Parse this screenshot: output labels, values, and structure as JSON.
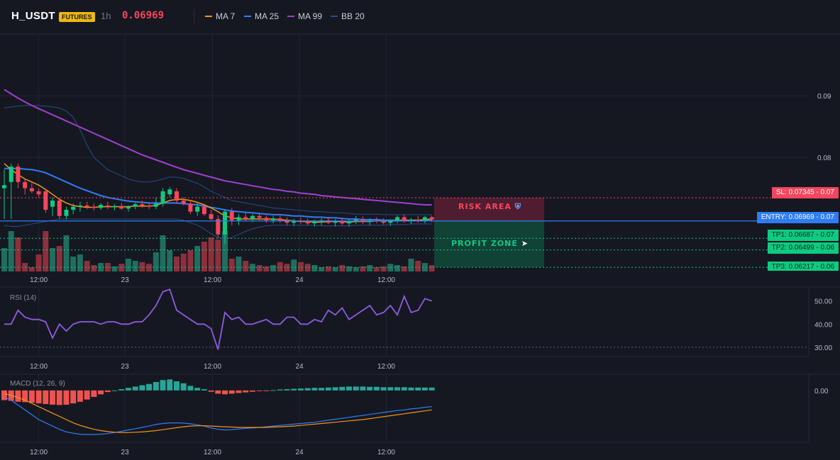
{
  "header": {
    "symbol": "H_USDT",
    "badge": "FUTURES",
    "timeframe": "1h",
    "price": "0.06969",
    "legend": [
      {
        "label": "MA 7",
        "color": "#f7931a"
      },
      {
        "label": "MA 25",
        "color": "#2f7cf6"
      },
      {
        "label": "MA 99",
        "color": "#a23fd1"
      },
      {
        "label": "BB 20",
        "color": "#2a4a8a"
      }
    ]
  },
  "colors": {
    "background": "#151821",
    "up": "#0ecb81",
    "down": "#f6465d",
    "vol_up": "#1f6e5e",
    "vol_down": "#8e2f3c",
    "grid": "#222632"
  },
  "levels": {
    "sl": {
      "label": "SL: 0.07345",
      "axis": "0.07",
      "value": 0.07345,
      "color": "#f6465d"
    },
    "entry": {
      "label": "ENTRY: 0.06969",
      "axis": "0.07",
      "value": 0.06969,
      "color": "#2f7cf6"
    },
    "tp1": {
      "label": "TP1: 0.06687",
      "axis": "0.07",
      "value": 0.06687,
      "color": "#0ecb81"
    },
    "tp2": {
      "label": "TP2: 0.06499",
      "axis": "0.06",
      "value": 0.06499,
      "color": "#0ecb81"
    },
    "tp3": {
      "label": "TP3: 0.06217",
      "axis": "0.06",
      "value": 0.06217,
      "color": "#0ecb81"
    }
  },
  "zones": {
    "risk": {
      "label": "RISK AREA",
      "icon": "shield-icon"
    },
    "profit": {
      "label": "PROFIT ZONE",
      "icon": "rocket-icon"
    }
  },
  "chart_data": [
    {
      "type": "candlestick",
      "name": "price",
      "y_ticks": [
        "0.09",
        "0.08"
      ],
      "y_tick_values": [
        0.09,
        0.08
      ],
      "x_ticks": [
        "12:00",
        "23",
        "12:00",
        "24",
        "12:00"
      ],
      "ylim": [
        0.0615,
        0.1
      ],
      "candles": [
        {
          "o": 0.075,
          "h": 0.078,
          "l": 0.07,
          "c": 0.0755
        },
        {
          "o": 0.076,
          "h": 0.079,
          "l": 0.07,
          "c": 0.0785
        },
        {
          "o": 0.0785,
          "h": 0.079,
          "l": 0.075,
          "c": 0.076
        },
        {
          "o": 0.076,
          "h": 0.0765,
          "l": 0.074,
          "c": 0.075
        },
        {
          "o": 0.075,
          "h": 0.0758,
          "l": 0.0742,
          "c": 0.0745
        },
        {
          "o": 0.0745,
          "h": 0.075,
          "l": 0.0735,
          "c": 0.074
        },
        {
          "o": 0.0745,
          "h": 0.0748,
          "l": 0.071,
          "c": 0.0715
        },
        {
          "o": 0.072,
          "h": 0.0735,
          "l": 0.0705,
          "c": 0.073
        },
        {
          "o": 0.073,
          "h": 0.0735,
          "l": 0.07,
          "c": 0.0705
        },
        {
          "o": 0.0705,
          "h": 0.072,
          "l": 0.07,
          "c": 0.0715
        },
        {
          "o": 0.0715,
          "h": 0.0725,
          "l": 0.0708,
          "c": 0.072
        },
        {
          "o": 0.072,
          "h": 0.0728,
          "l": 0.0712,
          "c": 0.0722
        },
        {
          "o": 0.0722,
          "h": 0.0728,
          "l": 0.0716,
          "c": 0.072
        },
        {
          "o": 0.072,
          "h": 0.0725,
          "l": 0.0714,
          "c": 0.0718
        },
        {
          "o": 0.0718,
          "h": 0.0726,
          "l": 0.0715,
          "c": 0.0723
        },
        {
          "o": 0.0722,
          "h": 0.0728,
          "l": 0.0716,
          "c": 0.0719
        },
        {
          "o": 0.0719,
          "h": 0.0724,
          "l": 0.0714,
          "c": 0.0721
        },
        {
          "o": 0.0721,
          "h": 0.0726,
          "l": 0.0715,
          "c": 0.0717
        },
        {
          "o": 0.0717,
          "h": 0.0722,
          "l": 0.0712,
          "c": 0.072
        },
        {
          "o": 0.072,
          "h": 0.0726,
          "l": 0.0716,
          "c": 0.0724
        },
        {
          "o": 0.0724,
          "h": 0.073,
          "l": 0.0718,
          "c": 0.0722
        },
        {
          "o": 0.0722,
          "h": 0.0726,
          "l": 0.0716,
          "c": 0.072
        },
        {
          "o": 0.072,
          "h": 0.0735,
          "l": 0.0716,
          "c": 0.0725
        },
        {
          "o": 0.0725,
          "h": 0.075,
          "l": 0.072,
          "c": 0.0745
        },
        {
          "o": 0.074,
          "h": 0.0752,
          "l": 0.0735,
          "c": 0.0748
        },
        {
          "o": 0.0745,
          "h": 0.075,
          "l": 0.0725,
          "c": 0.073
        },
        {
          "o": 0.073,
          "h": 0.0735,
          "l": 0.0722,
          "c": 0.0725
        },
        {
          "o": 0.0725,
          "h": 0.073,
          "l": 0.0708,
          "c": 0.0712
        },
        {
          "o": 0.0712,
          "h": 0.0728,
          "l": 0.0705,
          "c": 0.072
        },
        {
          "o": 0.072,
          "h": 0.0725,
          "l": 0.0705,
          "c": 0.0708
        },
        {
          "o": 0.0708,
          "h": 0.0715,
          "l": 0.0698,
          "c": 0.07
        },
        {
          "o": 0.07,
          "h": 0.0706,
          "l": 0.067,
          "c": 0.0675
        },
        {
          "o": 0.0675,
          "h": 0.0715,
          "l": 0.066,
          "c": 0.0712
        },
        {
          "o": 0.0712,
          "h": 0.0718,
          "l": 0.069,
          "c": 0.0698
        },
        {
          "o": 0.0698,
          "h": 0.0708,
          "l": 0.069,
          "c": 0.0703
        },
        {
          "o": 0.0703,
          "h": 0.071,
          "l": 0.0696,
          "c": 0.07
        },
        {
          "o": 0.07,
          "h": 0.0708,
          "l": 0.0695,
          "c": 0.0705
        },
        {
          "o": 0.0705,
          "h": 0.071,
          "l": 0.0698,
          "c": 0.0702
        },
        {
          "o": 0.0702,
          "h": 0.0706,
          "l": 0.0694,
          "c": 0.0698
        },
        {
          "o": 0.0698,
          "h": 0.0705,
          "l": 0.0693,
          "c": 0.0701
        },
        {
          "o": 0.0701,
          "h": 0.0706,
          "l": 0.0694,
          "c": 0.0697
        },
        {
          "o": 0.0697,
          "h": 0.0703,
          "l": 0.069,
          "c": 0.0694
        },
        {
          "o": 0.0694,
          "h": 0.07,
          "l": 0.0689,
          "c": 0.0697
        },
        {
          "o": 0.0697,
          "h": 0.0702,
          "l": 0.0692,
          "c": 0.0696
        },
        {
          "o": 0.0696,
          "h": 0.0701,
          "l": 0.069,
          "c": 0.0693
        },
        {
          "o": 0.0693,
          "h": 0.0699,
          "l": 0.0688,
          "c": 0.0695
        },
        {
          "o": 0.0695,
          "h": 0.0701,
          "l": 0.069,
          "c": 0.0698
        },
        {
          "o": 0.0698,
          "h": 0.0703,
          "l": 0.0692,
          "c": 0.0694
        },
        {
          "o": 0.0694,
          "h": 0.07,
          "l": 0.0688,
          "c": 0.0697
        },
        {
          "o": 0.0697,
          "h": 0.0702,
          "l": 0.069,
          "c": 0.0693
        },
        {
          "o": 0.0693,
          "h": 0.0699,
          "l": 0.0688,
          "c": 0.0696
        },
        {
          "o": 0.0696,
          "h": 0.0705,
          "l": 0.0692,
          "c": 0.0699
        },
        {
          "o": 0.0699,
          "h": 0.0704,
          "l": 0.0692,
          "c": 0.0695
        },
        {
          "o": 0.0695,
          "h": 0.0701,
          "l": 0.069,
          "c": 0.0698
        },
        {
          "o": 0.0698,
          "h": 0.0703,
          "l": 0.0693,
          "c": 0.0696
        },
        {
          "o": 0.0696,
          "h": 0.0701,
          "l": 0.0691,
          "c": 0.0694
        },
        {
          "o": 0.0694,
          "h": 0.0699,
          "l": 0.0689,
          "c": 0.0697
        },
        {
          "o": 0.0697,
          "h": 0.0706,
          "l": 0.0693,
          "c": 0.0703
        },
        {
          "o": 0.0703,
          "h": 0.0707,
          "l": 0.0694,
          "c": 0.0696
        },
        {
          "o": 0.0696,
          "h": 0.0702,
          "l": 0.0692,
          "c": 0.0699
        },
        {
          "o": 0.0699,
          "h": 0.0705,
          "l": 0.0694,
          "c": 0.0697
        },
        {
          "o": 0.0697,
          "h": 0.0705,
          "l": 0.0693,
          "c": 0.0703
        },
        {
          "o": 0.0703,
          "h": 0.0706,
          "l": 0.0695,
          "c": 0.0699
        }
      ],
      "volume": [
        0.55,
        0.95,
        0.8,
        0.2,
        0.1,
        0.4,
        0.95,
        0.55,
        0.6,
        0.85,
        0.35,
        0.4,
        0.25,
        0.15,
        0.2,
        0.2,
        0.12,
        0.18,
        0.3,
        0.25,
        0.22,
        0.18,
        0.45,
        0.85,
        0.5,
        0.35,
        0.42,
        0.5,
        0.6,
        0.7,
        0.8,
        0.75,
        0.95,
        0.3,
        0.35,
        0.25,
        0.18,
        0.15,
        0.12,
        0.15,
        0.22,
        0.18,
        0.28,
        0.22,
        0.18,
        0.15,
        0.1,
        0.12,
        0.1,
        0.15,
        0.12,
        0.1,
        0.12,
        0.15,
        0.1,
        0.12,
        0.18,
        0.15,
        0.12,
        0.3,
        0.25,
        0.2,
        0.15
      ],
      "ma7": [
        0.079,
        0.078,
        0.0772,
        0.0765,
        0.076,
        0.0755,
        0.0748,
        0.074,
        0.0732,
        0.0726,
        0.0722,
        0.072,
        0.0719,
        0.0719,
        0.072,
        0.072,
        0.072,
        0.072,
        0.072,
        0.0721,
        0.0721,
        0.0721,
        0.0722,
        0.0726,
        0.073,
        0.0732,
        0.0732,
        0.073,
        0.0727,
        0.0723,
        0.0718,
        0.0712,
        0.0705,
        0.0702,
        0.07,
        0.07,
        0.07,
        0.07,
        0.07,
        0.07,
        0.0699,
        0.0698,
        0.0697,
        0.0696,
        0.0696,
        0.0695,
        0.0695,
        0.0696,
        0.0696,
        0.0696,
        0.0695,
        0.0696,
        0.0696,
        0.0696,
        0.0697,
        0.0697,
        0.0697,
        0.0697,
        0.0698,
        0.0698,
        0.0698,
        0.0699,
        0.07
      ],
      "ma25": [
        0.0782,
        0.0782,
        0.0782,
        0.0781,
        0.078,
        0.0778,
        0.0775,
        0.077,
        0.0765,
        0.076,
        0.0755,
        0.075,
        0.0746,
        0.0742,
        0.0738,
        0.0735,
        0.0733,
        0.0731,
        0.0729,
        0.0728,
        0.0727,
        0.0726,
        0.0726,
        0.0726,
        0.0726,
        0.0726,
        0.0725,
        0.0724,
        0.0723,
        0.0721,
        0.0719,
        0.0717,
        0.0715,
        0.0713,
        0.0712,
        0.0711,
        0.071,
        0.0709,
        0.0708,
        0.0707,
        0.0707,
        0.0706,
        0.0705,
        0.0705,
        0.0704,
        0.0703,
        0.0703,
        0.0702,
        0.0702,
        0.0701,
        0.07,
        0.07,
        0.0699,
        0.0699,
        0.0699,
        0.0698,
        0.0698,
        0.0698,
        0.0698,
        0.0698,
        0.0698,
        0.0698,
        0.0698
      ],
      "ma99": [
        0.091,
        0.0903,
        0.0896,
        0.089,
        0.0884,
        0.0879,
        0.0874,
        0.0869,
        0.0864,
        0.0859,
        0.0854,
        0.0849,
        0.0844,
        0.0839,
        0.0834,
        0.0829,
        0.0824,
        0.0819,
        0.0814,
        0.0809,
        0.0804,
        0.08,
        0.0796,
        0.0792,
        0.0788,
        0.0784,
        0.078,
        0.0777,
        0.0774,
        0.0771,
        0.0768,
        0.0765,
        0.0762,
        0.076,
        0.0758,
        0.0756,
        0.0754,
        0.0752,
        0.075,
        0.0748,
        0.0747,
        0.0745,
        0.0744,
        0.0742,
        0.0741,
        0.074,
        0.0738,
        0.0737,
        0.0736,
        0.0735,
        0.0734,
        0.0733,
        0.0732,
        0.0731,
        0.073,
        0.0729,
        0.0728,
        0.0727,
        0.0726,
        0.0725,
        0.0724,
        0.0723,
        0.0723
      ],
      "bb_upper": [
        0.088,
        0.0882,
        0.0883,
        0.0884,
        0.0884,
        0.0884,
        0.0883,
        0.0882,
        0.088,
        0.0875,
        0.0865,
        0.0845,
        0.082,
        0.08,
        0.079,
        0.078,
        0.0775,
        0.077,
        0.0765,
        0.0762,
        0.076,
        0.076,
        0.0762,
        0.0765,
        0.0768,
        0.0768,
        0.0766,
        0.0762,
        0.0758,
        0.0752,
        0.0745,
        0.074,
        0.0735,
        0.073,
        0.0728,
        0.0726,
        0.0724,
        0.0722,
        0.072,
        0.0718,
        0.0717,
        0.0716,
        0.0715,
        0.0714,
        0.0713,
        0.0712,
        0.0712,
        0.0711,
        0.071,
        0.071,
        0.0709,
        0.0708,
        0.0708,
        0.0708,
        0.0708,
        0.0707,
        0.0707,
        0.0707,
        0.0707,
        0.0707,
        0.0707,
        0.0707,
        0.0707
      ],
      "bb_lower": [
        0.069,
        0.0688,
        0.0688,
        0.069,
        0.0692,
        0.0694,
        0.0696,
        0.0698,
        0.07,
        0.07,
        0.07,
        0.07,
        0.07,
        0.07,
        0.07,
        0.07,
        0.07,
        0.07,
        0.07,
        0.07,
        0.07,
        0.07,
        0.07,
        0.07,
        0.07,
        0.07,
        0.0698,
        0.0694,
        0.069,
        0.0684,
        0.0676,
        0.067,
        0.0668,
        0.067,
        0.0675,
        0.068,
        0.0684,
        0.0687,
        0.0689,
        0.069,
        0.069,
        0.069,
        0.069,
        0.069,
        0.069,
        0.069,
        0.0689,
        0.0689,
        0.0689,
        0.0689,
        0.0689,
        0.069,
        0.069,
        0.069,
        0.069,
        0.069,
        0.0691,
        0.0691,
        0.0691,
        0.0692,
        0.0692,
        0.0692,
        0.0692
      ]
    },
    {
      "type": "line",
      "name": "RSI (14)",
      "title": "RSI (14)",
      "y_ticks": [
        "50.00",
        "40.00",
        "30.00"
      ],
      "y_tick_values": [
        50,
        40,
        30
      ],
      "ylim": [
        26,
        56
      ],
      "reference_line": 30,
      "x_ticks": [
        "12:00",
        "23",
        "12:00",
        "24",
        "12:00"
      ],
      "values": [
        40,
        40,
        46,
        43,
        42,
        42,
        41,
        34,
        40,
        37,
        40,
        41,
        41,
        41,
        40,
        41,
        41,
        40,
        40,
        41,
        41,
        44,
        48,
        54,
        55,
        46,
        44,
        42,
        40,
        40,
        38,
        29,
        45,
        42,
        43,
        40,
        40,
        41,
        42,
        40,
        40,
        43,
        43,
        40,
        40,
        42,
        41,
        46,
        44,
        47,
        42,
        44,
        46,
        48,
        44,
        45,
        48,
        44,
        52,
        45,
        46,
        51,
        50
      ]
    },
    {
      "type": "bar+line",
      "name": "MACD (12, 26, 9)",
      "title": "MACD (12, 26, 9)",
      "y_ticks": [
        "0.00"
      ],
      "y_tick_values": [
        0
      ],
      "ylim": [
        -0.0016,
        0.0005
      ],
      "x_ticks": [
        "12:00",
        "23",
        "12:00",
        "24",
        "12:00"
      ],
      "histogram": [
        -0.0003,
        -0.00032,
        -0.00035,
        -0.00036,
        -0.00038,
        -0.0004,
        -0.00042,
        -0.00044,
        -0.00045,
        -0.00044,
        -0.0004,
        -0.00035,
        -0.00028,
        -0.0002,
        -0.00012,
        -5e-05,
        0.0,
        4e-05,
        8e-05,
        0.00012,
        0.00016,
        0.0002,
        0.00026,
        0.00032,
        0.00034,
        0.00028,
        0.00022,
        0.00014,
        8e-05,
        4e-05,
        -4e-05,
        -0.0001,
        -0.00012,
        -0.0001,
        -8e-05,
        -6e-05,
        -4e-05,
        -2e-05,
        -1e-05,
        1e-05,
        3e-05,
        4e-05,
        5e-05,
        6e-05,
        7e-05,
        8e-05,
        8e-05,
        9e-05,
        0.0001,
        0.00011,
        0.00012,
        0.00012,
        0.00012,
        0.00011,
        0.00011,
        0.0001,
        0.0001,
        0.0001,
        0.0001,
        9e-05,
        9e-05,
        9e-05,
        9e-05
      ],
      "macd": [
        -0.0002,
        -0.0003,
        -0.00045,
        -0.0006,
        -0.00075,
        -0.0009,
        -0.001,
        -0.0011,
        -0.0012,
        -0.00128,
        -0.00132,
        -0.00135,
        -0.00136,
        -0.00136,
        -0.00135,
        -0.00133,
        -0.0013,
        -0.00126,
        -0.00122,
        -0.00118,
        -0.00114,
        -0.0011,
        -0.00105,
        -0.00102,
        -0.001,
        -0.001,
        -0.00101,
        -0.00103,
        -0.00106,
        -0.0011,
        -0.00116,
        -0.0012,
        -0.00122,
        -0.00121,
        -0.00119,
        -0.00117,
        -0.00116,
        -0.00114,
        -0.00112,
        -0.0011,
        -0.00108,
        -0.00106,
        -0.00104,
        -0.00102,
        -0.001,
        -0.00098,
        -0.00095,
        -0.00092,
        -0.00089,
        -0.00086,
        -0.00083,
        -0.0008,
        -0.00077,
        -0.00074,
        -0.00071,
        -0.00068,
        -0.00065,
        -0.00062,
        -0.0006,
        -0.00057,
        -0.00055,
        -0.00052,
        -0.0005
      ],
      "signal": [
        -0.0001,
        -0.00015,
        -0.00022,
        -0.0003,
        -0.0004,
        -0.0005,
        -0.0006,
        -0.0007,
        -0.0008,
        -0.0009,
        -0.001,
        -0.00108,
        -0.00114,
        -0.0012,
        -0.00124,
        -0.00127,
        -0.00129,
        -0.0013,
        -0.0013,
        -0.00129,
        -0.00128,
        -0.00126,
        -0.00124,
        -0.00121,
        -0.00118,
        -0.00115,
        -0.00112,
        -0.0011,
        -0.00109,
        -0.00109,
        -0.0011,
        -0.00111,
        -0.00112,
        -0.00113,
        -0.00114,
        -0.00114,
        -0.00114,
        -0.00114,
        -0.00114,
        -0.00113,
        -0.00112,
        -0.00111,
        -0.0011,
        -0.00108,
        -0.00106,
        -0.00104,
        -0.00102,
        -0.001,
        -0.00098,
        -0.00096,
        -0.00094,
        -0.00092,
        -0.0009,
        -0.00087,
        -0.00084,
        -0.00081,
        -0.00078,
        -0.00075,
        -0.00072,
        -0.00069,
        -0.00066,
        -0.00063,
        -0.0006
      ]
    }
  ]
}
